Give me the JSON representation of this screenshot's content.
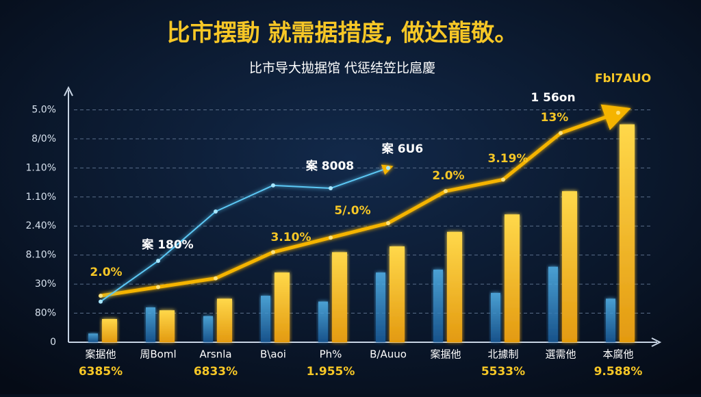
{
  "chart_data": {
    "type": "bar",
    "title": "比市摆動 就需据措度, 做达龍敬。",
    "subtitle": "比市导大拋据馆 代惩结笠比扈慶",
    "categories": [
      "案据他",
      "周Boml",
      "Arsnla",
      "B\\aoi",
      "Ph%",
      "B/Auuo",
      "案据他",
      "北據制",
      "選需他",
      "本腐他"
    ],
    "sublabels": [
      "6385%",
      null,
      "6833%",
      null,
      "1.955%",
      null,
      null,
      "5533%",
      null,
      "9.588%"
    ],
    "series": [
      {
        "color": "#f7c22e",
        "values": [
          0.8,
          1.1,
          1.5,
          2.4,
          3.1,
          3.3,
          3.8,
          4.4,
          5.2,
          7.5
        ]
      },
      {
        "color": "#3a9be0",
        "values": [
          0.3,
          1.2,
          0.9,
          1.6,
          1.4,
          2.4,
          2.5,
          1.7,
          2.6,
          1.5
        ]
      }
    ],
    "lines": [
      {
        "color": "#f5b400",
        "values": [
          1.6,
          1.9,
          2.2,
          3.1,
          3.6,
          4.1,
          5.2,
          5.6,
          7.2,
          7.9
        ]
      },
      {
        "color": "#5cc8f5",
        "values": [
          1.4,
          2.8,
          4.5,
          5.4,
          5.3,
          6.0,
          null,
          null,
          null,
          null
        ]
      }
    ],
    "annotations": [
      "2.0%",
      "案 180%",
      "3.10%",
      "5/.0%",
      "2.0%",
      "3.19%",
      "13%",
      "案 6U6",
      "案 8008",
      "1 56on",
      "Fbl7AUO"
    ],
    "ylim": [
      0,
      8.6
    ],
    "yticks": [
      {
        "value": 0,
        "label": "0"
      },
      {
        "value": 1,
        "label": "80%"
      },
      {
        "value": 2,
        "label": "30%"
      },
      {
        "value": 3,
        "label": "8.10%"
      },
      {
        "value": 4,
        "label": "2.40%"
      },
      {
        "value": 5,
        "label": "1.10%"
      },
      {
        "value": 6,
        "label": "1.10%"
      },
      {
        "value": 7,
        "label": "8/0%"
      },
      {
        "value": 8,
        "label": "5.0%"
      }
    ],
    "grid": true
  }
}
